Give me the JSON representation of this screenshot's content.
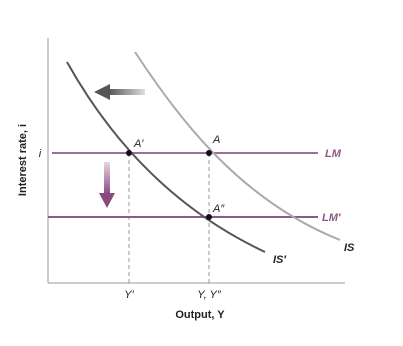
{
  "axes": {
    "y_label": "Interest rate, i",
    "x_label": "Output, Y",
    "y_tick": "i"
  },
  "curves": {
    "lm": "LM",
    "lm_prime": "LM′",
    "is": "IS",
    "is_prime": "IS′"
  },
  "points": {
    "a": "A",
    "a_prime": "A′",
    "a_double_prime": "A″"
  },
  "x_ticks": {
    "y_prime": "Y′",
    "y_y_double_prime": "Y, Y″"
  }
}
